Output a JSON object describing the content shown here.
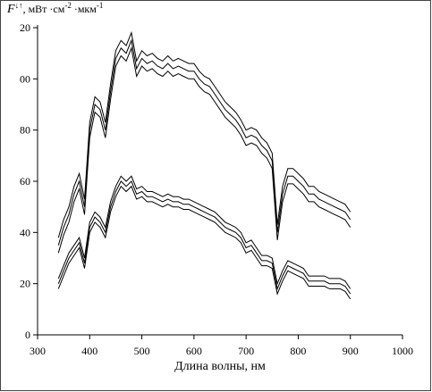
{
  "chart_data": {
    "type": "line",
    "y_label_parts": [
      "F",
      "↓↑",
      ", мВт ·см",
      "-2",
      " ·мкм",
      "-1"
    ],
    "x_label": "Длина волны, нм",
    "x": [
      340,
      350,
      360,
      370,
      380,
      390,
      400,
      410,
      420,
      430,
      440,
      450,
      460,
      470,
      480,
      490,
      500,
      510,
      520,
      530,
      540,
      550,
      560,
      570,
      580,
      590,
      600,
      610,
      620,
      630,
      640,
      650,
      660,
      670,
      680,
      690,
      700,
      710,
      720,
      730,
      740,
      750,
      760,
      770,
      780,
      790,
      800,
      810,
      820,
      830,
      840,
      850,
      860,
      870,
      880,
      890,
      900
    ],
    "series": [
      {
        "color": "#000000",
        "values": [
          38,
          45,
          50,
          58,
          63,
          53,
          83,
          93,
          91,
          83,
          98,
          111,
          115,
          113,
          118,
          107,
          111,
          109,
          110,
          108,
          107,
          109,
          107,
          108,
          107,
          106,
          106,
          103,
          101,
          100,
          97,
          94,
          91,
          89,
          87,
          84,
          80,
          81,
          80,
          77,
          75,
          71,
          43,
          58,
          65,
          65,
          63,
          61,
          58,
          58,
          56,
          55,
          54,
          53,
          52,
          51,
          48
        ]
      },
      {
        "color": "#000000",
        "values": [
          35,
          42,
          47,
          55,
          60,
          50,
          80,
          90,
          88,
          80,
          95,
          108,
          112,
          110,
          115,
          104,
          108,
          106,
          107,
          105,
          104,
          106,
          104,
          105,
          104,
          103,
          103,
          100,
          98,
          97,
          94,
          91,
          88,
          86,
          84,
          81,
          77,
          78,
          77,
          74,
          72,
          68,
          40,
          55,
          62,
          62,
          60,
          58,
          55,
          55,
          53,
          52,
          51,
          50,
          49,
          48,
          45
        ]
      },
      {
        "color": "#000000",
        "values": [
          32,
          39,
          44,
          52,
          57,
          47,
          77,
          87,
          85,
          77,
          92,
          105,
          109,
          107,
          112,
          101,
          105,
          103,
          104,
          102,
          101,
          103,
          101,
          102,
          101,
          100,
          100,
          97,
          95,
          94,
          91,
          88,
          85,
          83,
          81,
          78,
          74,
          75,
          74,
          71,
          69,
          65,
          37,
          52,
          59,
          59,
          57,
          55,
          52,
          52,
          50,
          49,
          48,
          47,
          46,
          45,
          42
        ]
      },
      {
        "color": "#000000",
        "values": [
          22,
          27,
          32,
          35,
          38,
          30,
          44,
          48,
          46,
          42,
          52,
          58,
          62,
          60,
          62,
          57,
          58,
          56,
          56,
          55,
          54,
          55,
          54,
          54,
          53,
          53,
          52,
          51,
          50,
          49,
          48,
          46,
          44,
          43,
          42,
          40,
          36,
          37,
          34,
          31,
          31,
          30,
          20,
          25,
          29,
          28,
          27,
          26,
          23,
          23,
          23,
          23,
          22,
          22,
          22,
          21,
          18
        ]
      },
      {
        "color": "#000000",
        "values": [
          20,
          25,
          30,
          33,
          36,
          28,
          42,
          46,
          44,
          40,
          50,
          56,
          60,
          58,
          60,
          55,
          56,
          54,
          54,
          53,
          52,
          53,
          52,
          52,
          51,
          51,
          50,
          49,
          48,
          47,
          46,
          44,
          42,
          41,
          40,
          38,
          34,
          35,
          32,
          29,
          29,
          28,
          18,
          23,
          27,
          26,
          25,
          24,
          21,
          21,
          21,
          21,
          20,
          20,
          20,
          19,
          16
        ]
      },
      {
        "color": "#000000",
        "values": [
          18,
          23,
          28,
          31,
          34,
          26,
          40,
          44,
          42,
          38,
          48,
          54,
          58,
          56,
          58,
          53,
          54,
          52,
          52,
          51,
          50,
          51,
          50,
          50,
          49,
          49,
          48,
          47,
          46,
          45,
          44,
          42,
          40,
          39,
          38,
          36,
          32,
          33,
          30,
          27,
          27,
          26,
          16,
          21,
          25,
          24,
          23,
          22,
          19,
          19,
          19,
          19,
          18,
          18,
          18,
          17,
          14
        ]
      }
    ],
    "xlim": [
      300,
      1000
    ],
    "xticks": [
      300,
      400,
      500,
      600,
      700,
      800,
      900,
      1000
    ],
    "ylim": [
      0,
      120
    ],
    "yticks": [
      0,
      20,
      40,
      60,
      80,
      {
        "value": 100,
        "label": "00"
      },
      {
        "value": 120,
        "label": "20"
      }
    ]
  }
}
